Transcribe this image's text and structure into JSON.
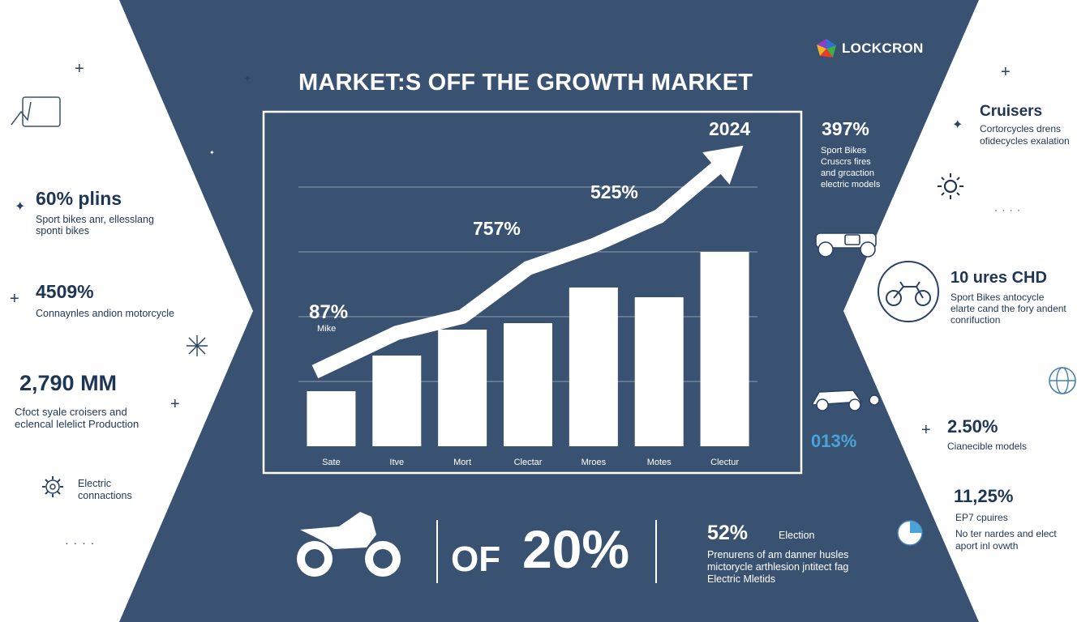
{
  "title": "MARKET:S OFF THE GROWTH MARKET",
  "brand": {
    "name": "LOCKCRON"
  },
  "colors": {
    "navy": "#3a5272",
    "ink": "#1f3556",
    "white": "#ffffff",
    "accent": "#4aa3d8"
  },
  "chart_data": {
    "type": "bar",
    "categories": [
      "Sate",
      "Itve",
      "Mort",
      "Clectar",
      "Mroes",
      "Motes",
      "Clectur"
    ],
    "values": [
      17,
      28,
      36,
      38,
      49,
      46,
      60
    ],
    "trend": [
      23,
      35,
      40,
      55,
      62,
      71,
      88
    ],
    "ylim": [
      0,
      100
    ],
    "grid": true,
    "year_label": "2024",
    "annotations": [
      {
        "text": "87%",
        "sub": "Mike"
      },
      {
        "text": "757%"
      },
      {
        "text": "525%"
      }
    ]
  },
  "left": {
    "stats": [
      {
        "value": "60% plins",
        "desc": [
          "Sport bikes anr, ellesslang",
          "sponti bikes"
        ]
      },
      {
        "value": "4509%",
        "desc": [
          "Connaynles andion motorcycle"
        ]
      },
      {
        "value": "2,790 MM",
        "desc": [
          "Cfoct syale croisers and",
          "eclencal lelelict Production"
        ]
      }
    ],
    "electric": [
      "Electric",
      "connactions"
    ],
    "dots": "· · · ·"
  },
  "right": {
    "stats": [
      {
        "value": "397%",
        "desc": [
          "Sport Bikes",
          "Cruscrs fires",
          "and grcaction",
          "electric models"
        ]
      },
      {
        "value": "Cruisers",
        "desc": [
          "Cortorcycles drens",
          "ofidecycles exalation"
        ]
      },
      {
        "value": "10 ures CHD",
        "desc": [
          "Sport Bikes antocycle",
          "elarte cand the fory andent",
          "conrifuction"
        ]
      },
      {
        "value": "013%"
      },
      {
        "value": "2.50%",
        "desc": [
          "Cianecible models"
        ]
      },
      {
        "value": "11,25%",
        "desc": [
          "EP7 cpuires"
        ]
      },
      {
        "value": "",
        "desc": [
          "No ter nardes and elect",
          "aport inl ovwth"
        ]
      }
    ],
    "dots": "· · · ·"
  },
  "bottom": {
    "of_label": "OF",
    "big_value": "20%",
    "pct": "52%",
    "pct_label": "Election",
    "desc": [
      "Prenurens of am danner husles",
      "mictorycle arthlesion jntitect fag",
      "Electric Mletids"
    ]
  }
}
